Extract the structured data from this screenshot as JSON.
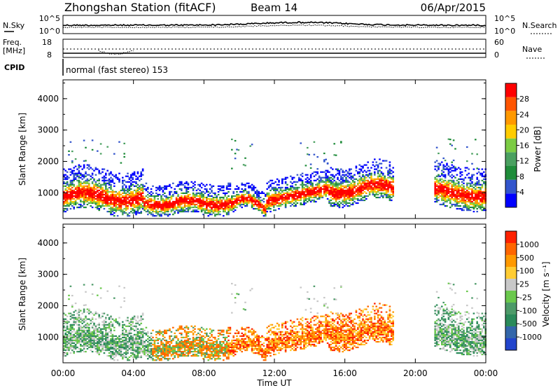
{
  "header": {
    "station": "Zhongshan Station (fitACF)",
    "beam": "Beam 14",
    "date": "06/Apr/2015"
  },
  "top_panels": {
    "nsky_label": "N.Sky",
    "nsearch_label": "N.Search",
    "noise_ticks_left": [
      "10^5",
      "10^0"
    ],
    "noise_ticks_right": [
      "10^5",
      "10^0"
    ],
    "freq_label_1": "Freq.",
    "freq_label_2": "[MHz]",
    "freq_ticks": [
      "18",
      "8"
    ],
    "nave_label": "Nave",
    "nave_ticks": [
      "60",
      "0"
    ],
    "cpid_label": "CPID",
    "cpid_text": "normal (fast stereo) 153"
  },
  "x_axis": {
    "label": "Time UT",
    "ticks": [
      "00:00",
      "04:00",
      "08:00",
      "12:00",
      "16:00",
      "20:00",
      "00:00"
    ]
  },
  "chart_data": [
    {
      "type": "heatmap",
      "ylabel": "Slant Range [km]",
      "yticks": [
        "4000",
        "3000",
        "2000",
        "1000"
      ],
      "colorbar_label": "Power [dB]",
      "colorbar_ticks": [
        "28",
        "24",
        "20",
        "16",
        "12",
        "8",
        "4"
      ],
      "colors": [
        "#0000ff",
        "#3355cc",
        "#1f8c3a",
        "#4aa060",
        "#7ccc44",
        "#ffcc00",
        "#ff9900",
        "#ff5500",
        "#ff0000"
      ]
    },
    {
      "type": "heatmap",
      "ylabel": "Slant Range [km]",
      "yticks": [
        "4000",
        "3000",
        "2000",
        "1000"
      ],
      "colorbar_label": "Velocity [m s⁻¹]",
      "colorbar_ticks": [
        "1000",
        "500",
        "100",
        "25",
        "-25",
        "-100",
        "-500",
        "-1000"
      ],
      "colors": [
        "#2244cc",
        "#3366aa",
        "#2a8a5a",
        "#4c9a68",
        "#6ac84c",
        "#c8c8c8",
        "#ffcc33",
        "#ff9900",
        "#ff6600",
        "#ff2200"
      ]
    }
  ]
}
